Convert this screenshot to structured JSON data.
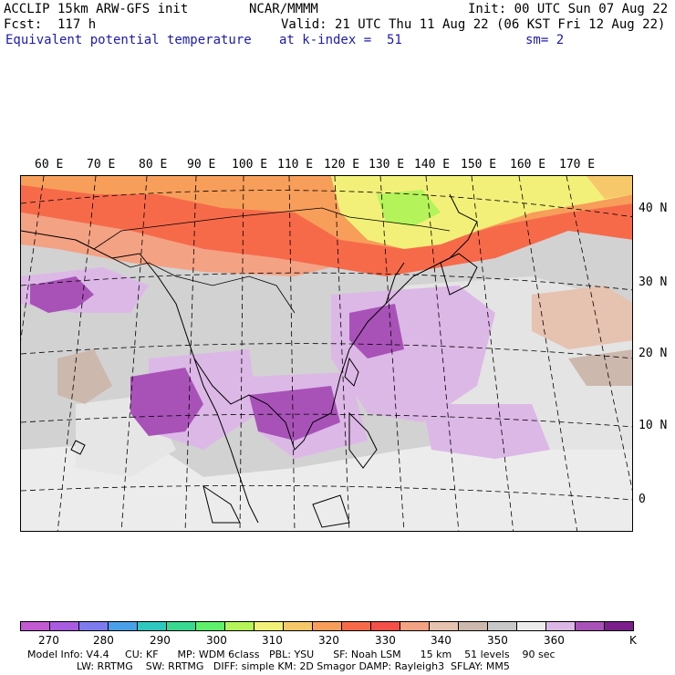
{
  "header": {
    "model_line": "ACCLIP 15km ARW-GFS init",
    "forecast_line": "Fcst:  117 h",
    "field_name": "Equivalent potential temperature",
    "center": "NCAR/MMMM",
    "init_time": "Init: 00 UTC Sun 07 Aug 22",
    "valid_time": "Valid: 21 UTC Thu 11 Aug 22 (06 KST Fri 12 Aug 22)",
    "level": "at k-index =  51",
    "smoothing": "sm= 2"
  },
  "map": {
    "lon_labels": [
      "60 E",
      "70 E",
      "80 E",
      "90 E",
      "100 E",
      "110 E",
      "120 E",
      "130 E",
      "140 E",
      "150 E",
      "160 E",
      "170 E"
    ],
    "lat_labels": [
      "40 N",
      "30 N",
      "20 N",
      "10 N",
      "0"
    ]
  },
  "colorbar": {
    "unit": "K",
    "tick_labels": [
      "270",
      "280",
      "290",
      "300",
      "310",
      "320",
      "330",
      "340",
      "350",
      "360"
    ],
    "colors": [
      "#c25ad2",
      "#a85ce0",
      "#7d7bee",
      "#4aa0e8",
      "#2fc8c0",
      "#38d890",
      "#5ef06c",
      "#b4f45a",
      "#f2f078",
      "#f6c86a",
      "#f79e5a",
      "#f66a4a",
      "#f25048",
      "#f4a284",
      "#e6c2b0",
      "#cdb8ae",
      "#c8c8c8",
      "#ececec",
      "#dcb8e6",
      "#a852b8",
      "#7c1e8c"
    ]
  },
  "footer": {
    "line1": "Model Info: V4.4     CU: KF      MP: WDM 6class   PBL: YSU      SF: Noah LSM      15 km    51 levels    90 sec",
    "line2": "LW: RRTMG    SW: RRTMG   DIFF: simple KM: 2D Smagor DAMP: Rayleigh3  SFLAY: MM5"
  }
}
